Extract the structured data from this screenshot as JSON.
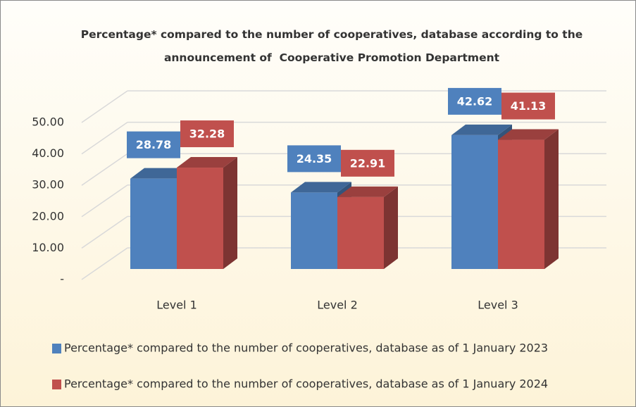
{
  "chart_data": {
    "type": "bar3d",
    "title": "Percentage* compared to the number of cooperatives, database according to the announcement of  Cooperative Promotion Department",
    "categories": [
      "Level 1",
      "Level 2",
      "Level 3"
    ],
    "series": [
      {
        "name": "Percentage* compared to the number of cooperatives, database as of 1 January 2023",
        "color": "#4f81bd",
        "values": [
          28.78,
          24.35,
          42.62
        ]
      },
      {
        "name": "Percentage* compared to the number of cooperatives, database as of 1 January 2024",
        "color": "#c0504d",
        "values": [
          32.28,
          22.91,
          41.13
        ]
      }
    ],
    "ylim": [
      0,
      50
    ],
    "yticks": [
      {
        "value": 0,
        "label": "-"
      },
      {
        "value": 10,
        "label": "10.00"
      },
      {
        "value": 20,
        "label": "20.00"
      },
      {
        "value": 30,
        "label": "30.00"
      },
      {
        "value": 40,
        "label": "40.00"
      },
      {
        "value": 50,
        "label": "50.00"
      }
    ],
    "grid": true
  }
}
